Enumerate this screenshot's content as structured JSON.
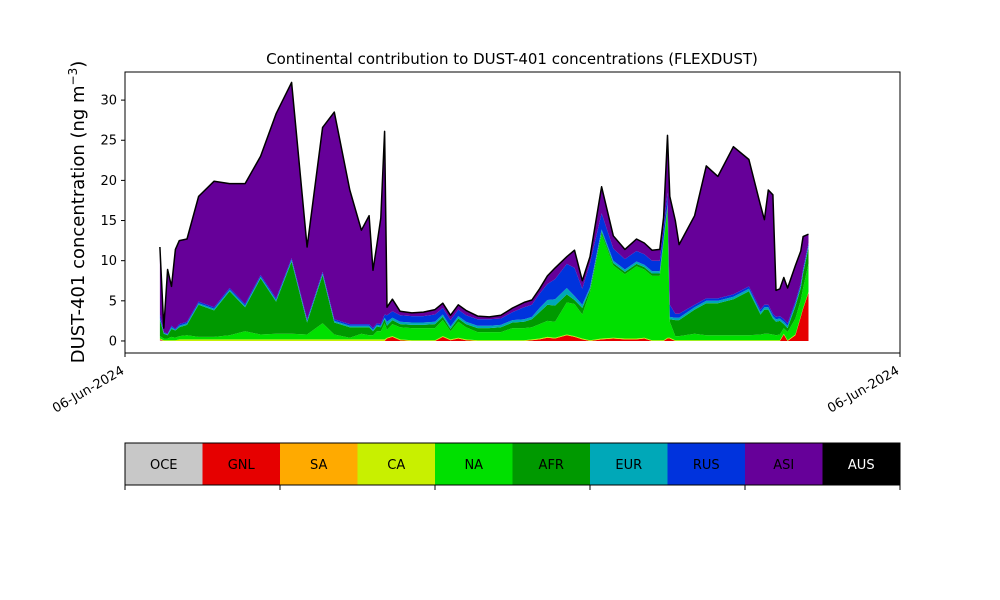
{
  "chart_data": {
    "type": "area",
    "stacked": true,
    "title": "Continental contribution to DUST-401 concentrations (FLEXDUST)",
    "ylabel": "DUST-401 concentration (ng m",
    "ylabel_superscript": "−3",
    "ylabel_suffix": ")",
    "xlabel": "",
    "ylim": [
      -1.5,
      33.5
    ],
    "xlim": [
      0,
      1
    ],
    "y_ticks": [
      0,
      5,
      10,
      15,
      20,
      25,
      30
    ],
    "x_tick_labels": [
      "06-Jun-2024",
      "06-Jun-2024"
    ],
    "grid": false,
    "total_line_color": "#000000",
    "x": [
      0.045,
      0.05,
      0.055,
      0.06,
      0.065,
      0.07,
      0.08,
      0.095,
      0.115,
      0.135,
      0.155,
      0.175,
      0.195,
      0.215,
      0.235,
      0.255,
      0.27,
      0.29,
      0.305,
      0.315,
      0.32,
      0.325,
      0.33,
      0.335,
      0.338,
      0.345,
      0.355,
      0.37,
      0.385,
      0.4,
      0.41,
      0.42,
      0.43,
      0.44,
      0.455,
      0.47,
      0.485,
      0.5,
      0.515,
      0.525,
      0.535,
      0.545,
      0.555,
      0.57,
      0.58,
      0.59,
      0.6,
      0.615,
      0.63,
      0.645,
      0.66,
      0.67,
      0.68,
      0.69,
      0.695,
      0.7,
      0.703,
      0.71,
      0.715,
      0.735,
      0.75,
      0.765,
      0.785,
      0.805,
      0.82,
      0.825,
      0.83,
      0.836,
      0.84,
      0.845,
      0.85,
      0.855,
      0.865,
      0.872,
      0.875,
      0.882
    ],
    "series": [
      {
        "name": "OCE",
        "color": "#c8c8c8",
        "values": [
          0.1,
          0,
          0,
          0,
          0,
          0,
          0,
          0,
          0,
          0,
          0,
          0,
          0,
          0,
          0,
          0,
          0,
          0,
          0,
          0,
          0,
          0,
          0,
          0,
          0,
          0,
          0,
          0,
          0,
          0,
          0,
          0,
          0,
          0,
          0,
          0,
          0,
          0,
          0,
          0,
          0,
          0,
          0,
          0,
          0,
          0,
          0,
          0,
          0,
          0,
          0,
          0,
          0,
          0,
          0,
          0,
          0,
          0,
          0,
          0,
          0,
          0,
          0,
          0,
          0,
          0,
          0,
          0,
          0,
          0,
          0,
          0,
          0,
          0,
          0,
          0
        ]
      },
      {
        "name": "GNL",
        "color": "#e60000",
        "values": [
          0.1,
          0,
          0,
          0,
          0,
          0,
          0,
          0,
          0,
          0,
          0,
          0,
          0,
          0,
          0,
          0,
          0,
          0,
          0,
          0,
          0,
          0,
          0,
          0,
          0.3,
          0.5,
          0.1,
          0,
          0,
          0,
          0.5,
          0.1,
          0.3,
          0.1,
          0,
          0,
          0,
          0,
          0,
          0.1,
          0.2,
          0.4,
          0.3,
          0.7,
          0.5,
          0.2,
          0,
          0.2,
          0.3,
          0.2,
          0.2,
          0.3,
          0,
          0,
          0,
          0.3,
          0.3,
          0,
          0,
          0,
          0,
          0,
          0,
          0,
          0,
          0,
          0,
          0,
          0,
          0,
          0.8,
          0,
          0.7,
          3,
          4,
          6
        ]
      },
      {
        "name": "SA",
        "color": "#ffaa00",
        "values": [
          0,
          0,
          0,
          0,
          0,
          0,
          0,
          0,
          0,
          0,
          0,
          0,
          0,
          0,
          0,
          0,
          0,
          0,
          0,
          0,
          0,
          0,
          0,
          0,
          0,
          0,
          0,
          0,
          0,
          0,
          0,
          0,
          0,
          0,
          0,
          0,
          0,
          0,
          0,
          0,
          0,
          0,
          0,
          0,
          0,
          0,
          0,
          0,
          0,
          0,
          0,
          0,
          0,
          0,
          0,
          0,
          0,
          0,
          0,
          0,
          0,
          0,
          0,
          0,
          0,
          0,
          0,
          0,
          0,
          0,
          0,
          0,
          0,
          0,
          0,
          0
        ]
      },
      {
        "name": "CA",
        "color": "#c8f000",
        "values": [
          0.1,
          0.1,
          0.1,
          0.1,
          0.1,
          0.2,
          0.2,
          0.2,
          0.2,
          0.2,
          0.2,
          0.2,
          0.2,
          0.2,
          0.2,
          0.2,
          0.2,
          0.2,
          0.2,
          0.2,
          0.2,
          0.2,
          0.2,
          0.2,
          0.1,
          0.1,
          0.1,
          0.1,
          0.1,
          0.1,
          0.1,
          0.1,
          0.1,
          0.1,
          0.1,
          0.1,
          0.1,
          0.1,
          0.1,
          0.1,
          0.1,
          0.1,
          0.1,
          0.1,
          0.1,
          0.1,
          0.1,
          0.1,
          0.1,
          0.1,
          0.1,
          0.1,
          0.1,
          0.1,
          0.1,
          0.1,
          0.1,
          0.1,
          0.1,
          0.1,
          0.1,
          0.1,
          0.1,
          0.1,
          0.1,
          0.1,
          0.1,
          0.1,
          0.1,
          0.1,
          0.1,
          0.1,
          0.1,
          0.1,
          0.1,
          0.1
        ]
      },
      {
        "name": "NA",
        "color": "#00e000",
        "values": [
          0.3,
          0.2,
          0.2,
          0.4,
          0.3,
          0.4,
          0.5,
          0.3,
          0.3,
          0.5,
          1.0,
          0.6,
          0.7,
          0.7,
          0.6,
          2.0,
          0.6,
          0.2,
          0.7,
          0.5,
          0.5,
          1.0,
          1.0,
          2.0,
          1.0,
          1.5,
          1.5,
          1.5,
          1.5,
          1.5,
          2.0,
          1.0,
          2.0,
          1.5,
          1.0,
          1.0,
          1.0,
          1.5,
          1.5,
          1.5,
          1.8,
          2.0,
          2.0,
          4.0,
          4.0,
          3.0,
          6.0,
          13.0,
          9.0,
          8.0,
          9.0,
          8.5,
          8.0,
          8.0,
          12.0,
          16.0,
          2.0,
          0.5,
          0.5,
          0.8,
          0.6,
          0.6,
          0.6,
          0.6,
          0.7,
          0.8,
          0.8,
          0.7,
          0.6,
          0.7,
          0.7,
          1.0,
          2.0,
          2.0,
          2.5,
          3.5
        ]
      },
      {
        "name": "AFR",
        "color": "#009900",
        "values": [
          2.0,
          0.6,
          0.4,
          1.0,
          0.9,
          1.1,
          1.3,
          4.0,
          3.3,
          5.5,
          3.0,
          7.0,
          4.0,
          9.0,
          1.5,
          6.0,
          1.5,
          1.3,
          0.8,
          1.0,
          0.5,
          0.6,
          0.5,
          0.5,
          0.5,
          0.5,
          0.4,
          0.4,
          0.4,
          0.5,
          0.4,
          0.3,
          0.4,
          0.4,
          0.5,
          0.5,
          0.6,
          0.7,
          0.8,
          1.0,
          1.5,
          2.0,
          2.0,
          1.0,
          0.5,
          0.8,
          0.3,
          0.3,
          0.3,
          0.3,
          0.3,
          0.3,
          0.3,
          0.3,
          0.3,
          0.3,
          0.3,
          2.0,
          2.0,
          3.0,
          4.0,
          4.0,
          4.5,
          5.5,
          2.5,
          3.0,
          3.0,
          2.0,
          1.7,
          1.7,
          0.5,
          0.5,
          1.5,
          1.5,
          1.8,
          2.0
        ]
      },
      {
        "name": "EUR",
        "color": "#00a8b8",
        "values": [
          0.2,
          0.1,
          0.1,
          0.2,
          0.1,
          0.2,
          0.2,
          0.2,
          0.2,
          0.2,
          0.2,
          0.2,
          0.2,
          0.2,
          0.2,
          0.2,
          0.2,
          0.2,
          0.2,
          0.2,
          0.2,
          0.2,
          0.2,
          0.2,
          0.5,
          0.3,
          0.3,
          0.3,
          0.3,
          0.3,
          0.3,
          0.3,
          0.3,
          0.3,
          0.3,
          0.3,
          0.3,
          0.3,
          0.3,
          0.3,
          0.5,
          0.6,
          0.8,
          0.8,
          0.5,
          0.4,
          0.3,
          0.3,
          0.3,
          0.3,
          0.3,
          0.3,
          0.3,
          0.3,
          0.3,
          0.3,
          0.3,
          0.3,
          0.3,
          0.3,
          0.3,
          0.3,
          0.3,
          0.3,
          0.3,
          0.3,
          0.3,
          0.3,
          0.3,
          0.3,
          0.3,
          0.3,
          0.3,
          0.3,
          0.3,
          0.3
        ]
      },
      {
        "name": "RUS",
        "color": "#0033dd",
        "values": [
          0.5,
          0.1,
          0.1,
          0.2,
          0.1,
          0.2,
          0.2,
          0.2,
          0.2,
          0.2,
          0.2,
          0.2,
          0.2,
          0.2,
          0.2,
          0.2,
          0.2,
          0.2,
          0.2,
          0.2,
          0.2,
          0.2,
          0.2,
          0.4,
          0.8,
          0.8,
          0.8,
          0.8,
          0.8,
          0.9,
          0.8,
          0.8,
          0.8,
          0.8,
          0.8,
          0.8,
          0.8,
          1.0,
          1.5,
          1.5,
          1.8,
          2.0,
          2.5,
          3.0,
          3.5,
          2.0,
          3.0,
          2.0,
          1.5,
          1.3,
          1.3,
          1.3,
          1.3,
          1.3,
          1.3,
          1.5,
          1.5,
          0.5,
          0.5,
          0.3,
          0.3,
          0.3,
          0.3,
          0.3,
          0.3,
          0.3,
          0.3,
          0.3,
          0.3,
          0.3,
          0.3,
          0.3,
          0.3,
          0.3,
          0.3,
          0.3
        ]
      },
      {
        "name": "ASI",
        "color": "#660099",
        "values": [
          8.4,
          0.5,
          8.0,
          4.9,
          9.9,
          10.4,
          10.3,
          13.1,
          15.7,
          13.0,
          15.0,
          14.8,
          23.0,
          21.9,
          9.0,
          18.0,
          25.8,
          16.7,
          11.7,
          13.5,
          7.2,
          9.8,
          13.2,
          22.8,
          1.0,
          1.5,
          0.5,
          0.4,
          0.5,
          0.6,
          0.6,
          0.6,
          0.6,
          0.6,
          0.4,
          0.3,
          0.4,
          0.5,
          0.6,
          0.6,
          0.6,
          1.0,
          1.4,
          0.9,
          2.2,
          1.0,
          0.8,
          3.3,
          1.6,
          1.2,
          1.5,
          1.4,
          1.3,
          1.4,
          1.4,
          7.1,
          13.5,
          11.6,
          8.6,
          11.1,
          16.5,
          15.2,
          18.4,
          15.8,
          13.0,
          10.6,
          14.3,
          14.8,
          3.3,
          3.4,
          5.2,
          4.4,
          4.5,
          4.0,
          4.0,
          1.1
        ]
      },
      {
        "name": "AUS",
        "color": "#000000",
        "values": [
          0,
          0,
          0,
          0,
          0,
          0,
          0,
          0,
          0,
          0,
          0,
          0,
          0,
          0,
          0,
          0,
          0,
          0,
          0,
          0,
          0,
          0,
          0,
          0,
          0,
          0,
          0,
          0,
          0,
          0,
          0,
          0,
          0,
          0,
          0,
          0,
          0,
          0,
          0,
          0,
          0,
          0,
          0,
          0,
          0,
          0,
          0,
          0,
          0,
          0,
          0,
          0,
          0,
          0,
          0,
          0,
          0,
          0,
          0,
          0,
          0,
          0,
          0,
          0,
          0,
          0,
          0,
          0,
          0,
          0,
          0,
          0,
          0,
          0,
          0,
          0
        ]
      }
    ],
    "legend": {
      "placement": "bottom",
      "entries": [
        {
          "label": "OCE",
          "color": "#c8c8c8",
          "text_color": "#000000"
        },
        {
          "label": "GNL",
          "color": "#e60000",
          "text_color": "#000000"
        },
        {
          "label": "SA",
          "color": "#ffaa00",
          "text_color": "#000000"
        },
        {
          "label": "CA",
          "color": "#c8f000",
          "text_color": "#000000"
        },
        {
          "label": "NA",
          "color": "#00e000",
          "text_color": "#000000"
        },
        {
          "label": "AFR",
          "color": "#009900",
          "text_color": "#000000"
        },
        {
          "label": "EUR",
          "color": "#00a8b8",
          "text_color": "#000000"
        },
        {
          "label": "RUS",
          "color": "#0033dd",
          "text_color": "#000000"
        },
        {
          "label": "ASI",
          "color": "#660099",
          "text_color": "#000000"
        },
        {
          "label": "AUS",
          "color": "#000000",
          "text_color": "#ffffff"
        }
      ]
    }
  }
}
